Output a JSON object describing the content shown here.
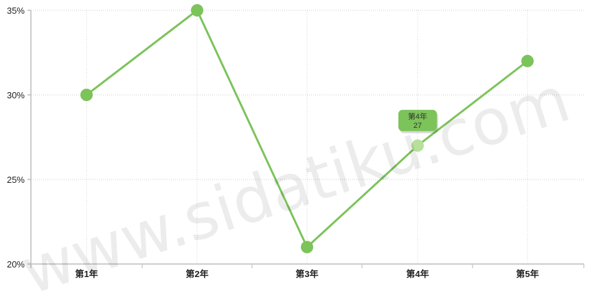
{
  "watermark": "www.sidatiku.com",
  "chart_data": {
    "type": "line",
    "categories": [
      "第1年",
      "第2年",
      "第3年",
      "第4年",
      "第5年"
    ],
    "series": [
      {
        "values": [
          30,
          35,
          21,
          27,
          32
        ],
        "color": "#7cc35a"
      }
    ],
    "ylim": [
      20,
      35
    ],
    "yticks": [
      20,
      25,
      30,
      35
    ],
    "ytick_labels": [
      "20%",
      "25%",
      "30%",
      "35%"
    ],
    "grid": true,
    "tooltip": {
      "category": "第4年",
      "value": "27"
    }
  }
}
